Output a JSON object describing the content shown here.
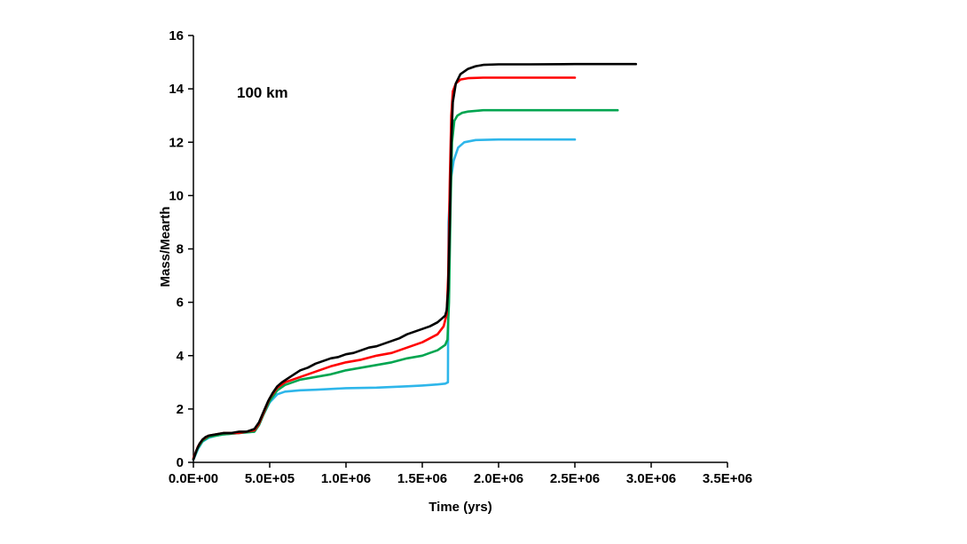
{
  "figure": {
    "annotation": "100 km",
    "xlabel": "Time (yrs)",
    "ylabel": "Mass/Mearth"
  },
  "chart_data": {
    "type": "line",
    "title": "",
    "annotation": "100 km",
    "xlabel": "Time (yrs)",
    "ylabel": "Mass/Mearth",
    "xlim": [
      0,
      3500000
    ],
    "ylim": [
      0,
      16
    ],
    "grid": false,
    "legend": "none",
    "x_ticks": {
      "values": [
        0,
        500000,
        1000000,
        1500000,
        2000000,
        2500000,
        3000000,
        3500000
      ],
      "labels": [
        "0.0E+00",
        "5.0E+05",
        "1.0E+06",
        "1.5E+06",
        "2.0E+06",
        "2.5E+06",
        "3.0E+06",
        "3.5E+06"
      ]
    },
    "y_ticks": {
      "values": [
        0,
        2,
        4,
        6,
        8,
        10,
        12,
        14,
        16
      ],
      "labels": [
        "0",
        "2",
        "4",
        "6",
        "8",
        "10",
        "12",
        "14",
        "16"
      ]
    },
    "series": [
      {
        "name": "cyan-curve",
        "color": "#2EB6EA",
        "final_mass": 12.1,
        "points": [
          [
            0,
            0.1
          ],
          [
            30000,
            0.5
          ],
          [
            60000,
            0.78
          ],
          [
            100000,
            0.92
          ],
          [
            150000,
            1.0
          ],
          [
            200000,
            1.05
          ],
          [
            300000,
            1.1
          ],
          [
            400000,
            1.15
          ],
          [
            430000,
            1.4
          ],
          [
            460000,
            1.8
          ],
          [
            500000,
            2.25
          ],
          [
            550000,
            2.55
          ],
          [
            600000,
            2.65
          ],
          [
            700000,
            2.7
          ],
          [
            800000,
            2.72
          ],
          [
            900000,
            2.75
          ],
          [
            1000000,
            2.78
          ],
          [
            1200000,
            2.8
          ],
          [
            1400000,
            2.85
          ],
          [
            1500000,
            2.88
          ],
          [
            1600000,
            2.92
          ],
          [
            1650000,
            2.95
          ],
          [
            1668000,
            3.0
          ],
          [
            1672000,
            9.0
          ],
          [
            1685000,
            10.5
          ],
          [
            1705000,
            11.3
          ],
          [
            1735000,
            11.8
          ],
          [
            1775000,
            12.0
          ],
          [
            1850000,
            12.08
          ],
          [
            2000000,
            12.1
          ],
          [
            2300000,
            12.1
          ],
          [
            2500000,
            12.1
          ]
        ]
      },
      {
        "name": "green-curve",
        "color": "#00A550",
        "final_mass": 13.2,
        "points": [
          [
            0,
            0.12
          ],
          [
            30000,
            0.55
          ],
          [
            60000,
            0.8
          ],
          [
            100000,
            0.95
          ],
          [
            150000,
            1.0
          ],
          [
            200000,
            1.05
          ],
          [
            300000,
            1.1
          ],
          [
            400000,
            1.15
          ],
          [
            430000,
            1.4
          ],
          [
            460000,
            1.8
          ],
          [
            500000,
            2.3
          ],
          [
            550000,
            2.7
          ],
          [
            600000,
            2.9
          ],
          [
            650000,
            3.0
          ],
          [
            700000,
            3.1
          ],
          [
            800000,
            3.2
          ],
          [
            900000,
            3.3
          ],
          [
            1000000,
            3.45
          ],
          [
            1100000,
            3.55
          ],
          [
            1200000,
            3.65
          ],
          [
            1300000,
            3.75
          ],
          [
            1400000,
            3.9
          ],
          [
            1500000,
            4.0
          ],
          [
            1550000,
            4.1
          ],
          [
            1600000,
            4.2
          ],
          [
            1650000,
            4.4
          ],
          [
            1665000,
            4.6
          ],
          [
            1675000,
            6.0
          ],
          [
            1685000,
            9.5
          ],
          [
            1695000,
            12.0
          ],
          [
            1710000,
            12.8
          ],
          [
            1730000,
            13.0
          ],
          [
            1760000,
            13.1
          ],
          [
            1800000,
            13.15
          ],
          [
            1900000,
            13.2
          ],
          [
            2200000,
            13.2
          ],
          [
            2780000,
            13.2
          ]
        ]
      },
      {
        "name": "red-curve",
        "color": "#FF0000",
        "final_mass": 14.4,
        "points": [
          [
            0,
            0.15
          ],
          [
            30000,
            0.6
          ],
          [
            60000,
            0.85
          ],
          [
            100000,
            1.0
          ],
          [
            150000,
            1.05
          ],
          [
            200000,
            1.1
          ],
          [
            300000,
            1.1
          ],
          [
            400000,
            1.2
          ],
          [
            430000,
            1.45
          ],
          [
            460000,
            1.85
          ],
          [
            500000,
            2.4
          ],
          [
            550000,
            2.8
          ],
          [
            600000,
            3.0
          ],
          [
            650000,
            3.1
          ],
          [
            700000,
            3.2
          ],
          [
            800000,
            3.4
          ],
          [
            900000,
            3.6
          ],
          [
            1000000,
            3.75
          ],
          [
            1100000,
            3.85
          ],
          [
            1200000,
            4.0
          ],
          [
            1300000,
            4.1
          ],
          [
            1400000,
            4.3
          ],
          [
            1500000,
            4.5
          ],
          [
            1550000,
            4.65
          ],
          [
            1600000,
            4.8
          ],
          [
            1640000,
            5.1
          ],
          [
            1660000,
            5.55
          ],
          [
            1670000,
            7.0
          ],
          [
            1680000,
            10.5
          ],
          [
            1690000,
            13.0
          ],
          [
            1700000,
            13.9
          ],
          [
            1720000,
            14.2
          ],
          [
            1750000,
            14.35
          ],
          [
            1800000,
            14.4
          ],
          [
            1900000,
            14.42
          ],
          [
            2100000,
            14.42
          ],
          [
            2500000,
            14.42
          ]
        ]
      },
      {
        "name": "black-curve",
        "color": "#000000",
        "final_mass": 14.9,
        "points": [
          [
            0,
            0.1
          ],
          [
            20000,
            0.45
          ],
          [
            40000,
            0.7
          ],
          [
            60000,
            0.85
          ],
          [
            80000,
            0.95
          ],
          [
            100000,
            1.0
          ],
          [
            150000,
            1.05
          ],
          [
            200000,
            1.1
          ],
          [
            250000,
            1.1
          ],
          [
            300000,
            1.15
          ],
          [
            350000,
            1.15
          ],
          [
            400000,
            1.25
          ],
          [
            430000,
            1.5
          ],
          [
            460000,
            1.9
          ],
          [
            490000,
            2.3
          ],
          [
            520000,
            2.6
          ],
          [
            550000,
            2.85
          ],
          [
            580000,
            3.0
          ],
          [
            620000,
            3.15
          ],
          [
            660000,
            3.3
          ],
          [
            700000,
            3.45
          ],
          [
            750000,
            3.55
          ],
          [
            800000,
            3.7
          ],
          [
            850000,
            3.8
          ],
          [
            900000,
            3.9
          ],
          [
            950000,
            3.95
          ],
          [
            1000000,
            4.05
          ],
          [
            1050000,
            4.1
          ],
          [
            1100000,
            4.2
          ],
          [
            1150000,
            4.3
          ],
          [
            1200000,
            4.35
          ],
          [
            1250000,
            4.45
          ],
          [
            1300000,
            4.55
          ],
          [
            1350000,
            4.65
          ],
          [
            1400000,
            4.8
          ],
          [
            1450000,
            4.9
          ],
          [
            1500000,
            5.0
          ],
          [
            1550000,
            5.1
          ],
          [
            1600000,
            5.25
          ],
          [
            1630000,
            5.4
          ],
          [
            1650000,
            5.5
          ],
          [
            1660000,
            5.7
          ],
          [
            1670000,
            6.5
          ],
          [
            1680000,
            9.0
          ],
          [
            1690000,
            12.0
          ],
          [
            1700000,
            13.5
          ],
          [
            1720000,
            14.2
          ],
          [
            1750000,
            14.55
          ],
          [
            1800000,
            14.75
          ],
          [
            1850000,
            14.85
          ],
          [
            1900000,
            14.9
          ],
          [
            2000000,
            14.92
          ],
          [
            2200000,
            14.92
          ],
          [
            2500000,
            14.93
          ],
          [
            2900000,
            14.93
          ]
        ]
      }
    ]
  }
}
